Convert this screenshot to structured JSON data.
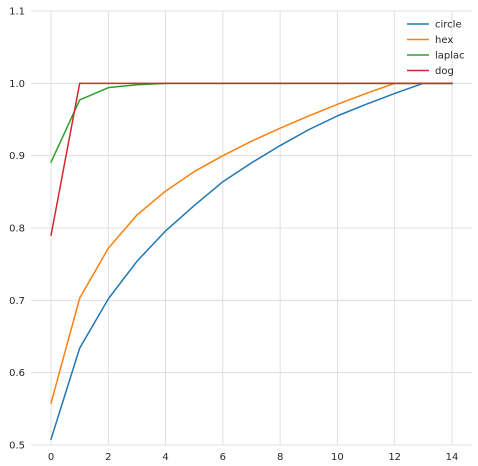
{
  "chart_data": {
    "type": "line",
    "title": "",
    "xlabel": "",
    "ylabel": "",
    "xlim": [
      -0.7,
      14.7
    ],
    "ylim": [
      0.5,
      1.1
    ],
    "grid": true,
    "legend_position": "top-right",
    "x": [
      0,
      1,
      2,
      3,
      4,
      5,
      6,
      7,
      8,
      9,
      10,
      11,
      12,
      13,
      14
    ],
    "xticks": [
      "0",
      "2",
      "4",
      "6",
      "8",
      "10",
      "12",
      "14"
    ],
    "yticks": [
      "0.5",
      "0.6",
      "0.7",
      "0.8",
      "0.9",
      "1.0",
      "1.1"
    ],
    "series": [
      {
        "name": "circle",
        "color": "#1f77b4",
        "values": [
          0.508,
          0.634,
          0.702,
          0.754,
          0.796,
          0.831,
          0.864,
          0.89,
          0.914,
          0.936,
          0.955,
          0.971,
          0.986,
          1.0,
          1.0
        ]
      },
      {
        "name": "hex",
        "color": "#ff7f0e",
        "values": [
          0.558,
          0.703,
          0.772,
          0.818,
          0.851,
          0.878,
          0.9,
          0.92,
          0.938,
          0.955,
          0.971,
          0.986,
          1.0,
          1.0,
          1.0
        ]
      },
      {
        "name": "laplac",
        "color": "#2ca02c",
        "values": [
          0.891,
          0.977,
          0.994,
          0.998,
          1.0,
          1.0,
          1.0,
          1.0,
          1.0,
          1.0,
          1.0,
          1.0,
          1.0,
          1.0,
          1.0
        ]
      },
      {
        "name": "dog",
        "color": "#d62728",
        "values": [
          0.79,
          1.0,
          1.0,
          1.0,
          1.0,
          1.0,
          1.0,
          1.0,
          1.0,
          1.0,
          1.0,
          1.0,
          1.0,
          1.0,
          1.0
        ]
      }
    ]
  }
}
